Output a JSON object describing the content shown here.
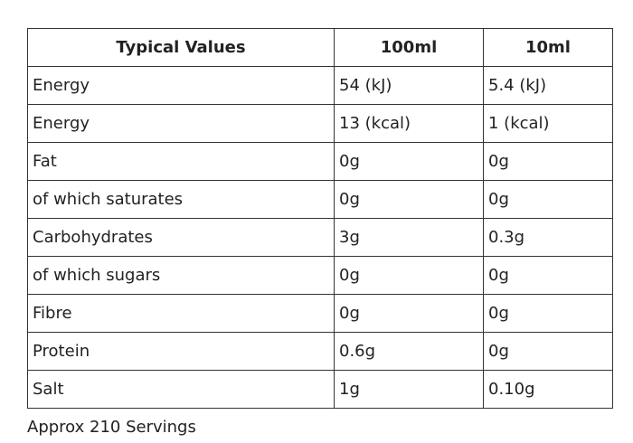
{
  "table": {
    "header": [
      "Typical Values",
      "100ml",
      "10ml"
    ],
    "rows": [
      [
        "Energy",
        "54 (kJ)",
        "5.4 (kJ)"
      ],
      [
        "Energy",
        "13 (kcal)",
        "1 (kcal)"
      ],
      [
        "Fat",
        "0g",
        "0g"
      ],
      [
        "of which saturates",
        "0g",
        "0g"
      ],
      [
        "Carbohydrates",
        "3g",
        "0.3g"
      ],
      [
        "of which sugars",
        "0g",
        "0g"
      ],
      [
        "Fibre",
        "0g",
        "0g"
      ],
      [
        "Protein",
        "0.6g",
        "0g"
      ],
      [
        "Salt",
        "1g",
        "0.10g"
      ]
    ]
  },
  "footer": "Approx 210 Servings"
}
